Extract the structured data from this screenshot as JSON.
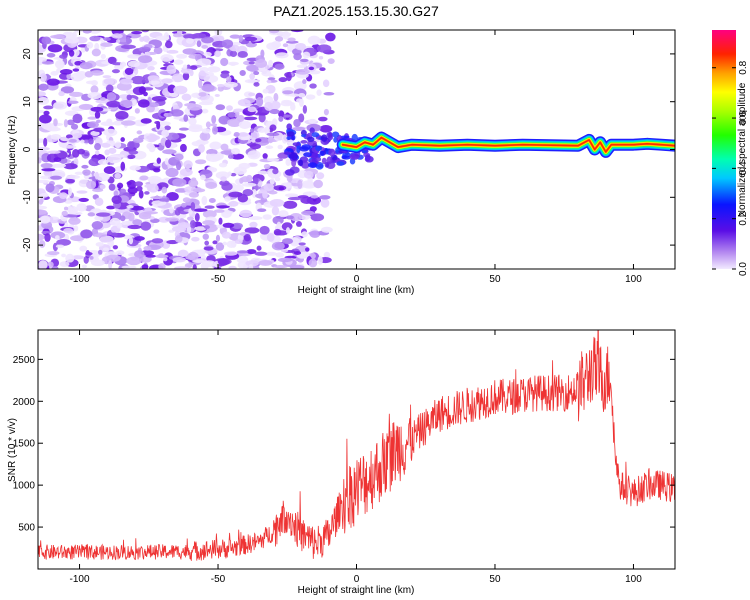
{
  "figure_title": "PAZ1.2025.153.15.30.G27",
  "chart_data": [
    {
      "type": "heatmap",
      "title": "PAZ1.2025.153.15.30.G27",
      "xlabel": "Height of straight line (km)",
      "ylabel": "Frequency (Hz)",
      "xlim": [
        -115,
        115
      ],
      "ylim": [
        -25,
        25
      ],
      "xticks": [
        -100,
        -50,
        0,
        50,
        100
      ],
      "yticks": [
        -20,
        -10,
        0,
        10,
        20
      ],
      "grid": false,
      "noise_region_x": [
        -115,
        -15
      ],
      "transition_region_x": [
        -25,
        5
      ],
      "tone_trace": {
        "x": [
          -5,
          0,
          3,
          6,
          9,
          12,
          15,
          20,
          30,
          40,
          50,
          60,
          70,
          80,
          84,
          86,
          88,
          90,
          92,
          95,
          100,
          105,
          110,
          115
        ],
        "y": [
          1.0,
          0.5,
          1.5,
          1.0,
          2.5,
          1.5,
          0.5,
          1.0,
          0.8,
          1.0,
          0.8,
          1.0,
          0.9,
          0.8,
          2.0,
          0.0,
          1.5,
          -0.5,
          1.0,
          1.0,
          1.0,
          1.2,
          1.0,
          0.8
        ]
      },
      "colorbar": {
        "label": "Normalized spectral amplitude",
        "range": [
          0.0,
          0.95
        ],
        "ticks": [
          0.0,
          0.2,
          0.4,
          0.6,
          0.8
        ],
        "tick_labels": [
          "0.0",
          "0.2",
          "0.4",
          "0.6",
          "0.8"
        ],
        "colormap": "rainbow (white-violet-blue-cyan-green-yellow-red-magenta)"
      }
    },
    {
      "type": "line",
      "xlabel": "Height of straight line (km)",
      "ylabel": "SNR (10 * v/v)",
      "xlim": [
        -115,
        115
      ],
      "ylim": [
        0,
        2850
      ],
      "xticks": [
        -100,
        -50,
        0,
        50,
        100
      ],
      "yticks": [
        500,
        1000,
        1500,
        2000,
        2500
      ],
      "grid": false,
      "series": [
        {
          "color": "#ee3333",
          "x": [
            -115,
            -100,
            -80,
            -60,
            -45,
            -35,
            -30,
            -27,
            -25,
            -22,
            -20,
            -15,
            -10,
            -5,
            -2,
            0,
            2,
            5,
            10,
            15,
            20,
            25,
            30,
            35,
            40,
            45,
            50,
            55,
            60,
            65,
            70,
            75,
            80,
            83,
            85,
            88,
            90,
            92,
            93,
            95,
            100,
            105,
            110,
            115
          ],
          "y": [
            200,
            200,
            200,
            210,
            250,
            330,
            450,
            600,
            650,
            500,
            420,
            300,
            400,
            800,
            900,
            950,
            1000,
            1100,
            1250,
            1450,
            1550,
            1700,
            1850,
            1900,
            1950,
            2000,
            2050,
            2050,
            2080,
            2100,
            2100,
            2100,
            2150,
            2250,
            2400,
            2300,
            2250,
            2350,
            1500,
            1000,
            900,
            1000,
            1000,
            950
          ]
        }
      ]
    }
  ]
}
